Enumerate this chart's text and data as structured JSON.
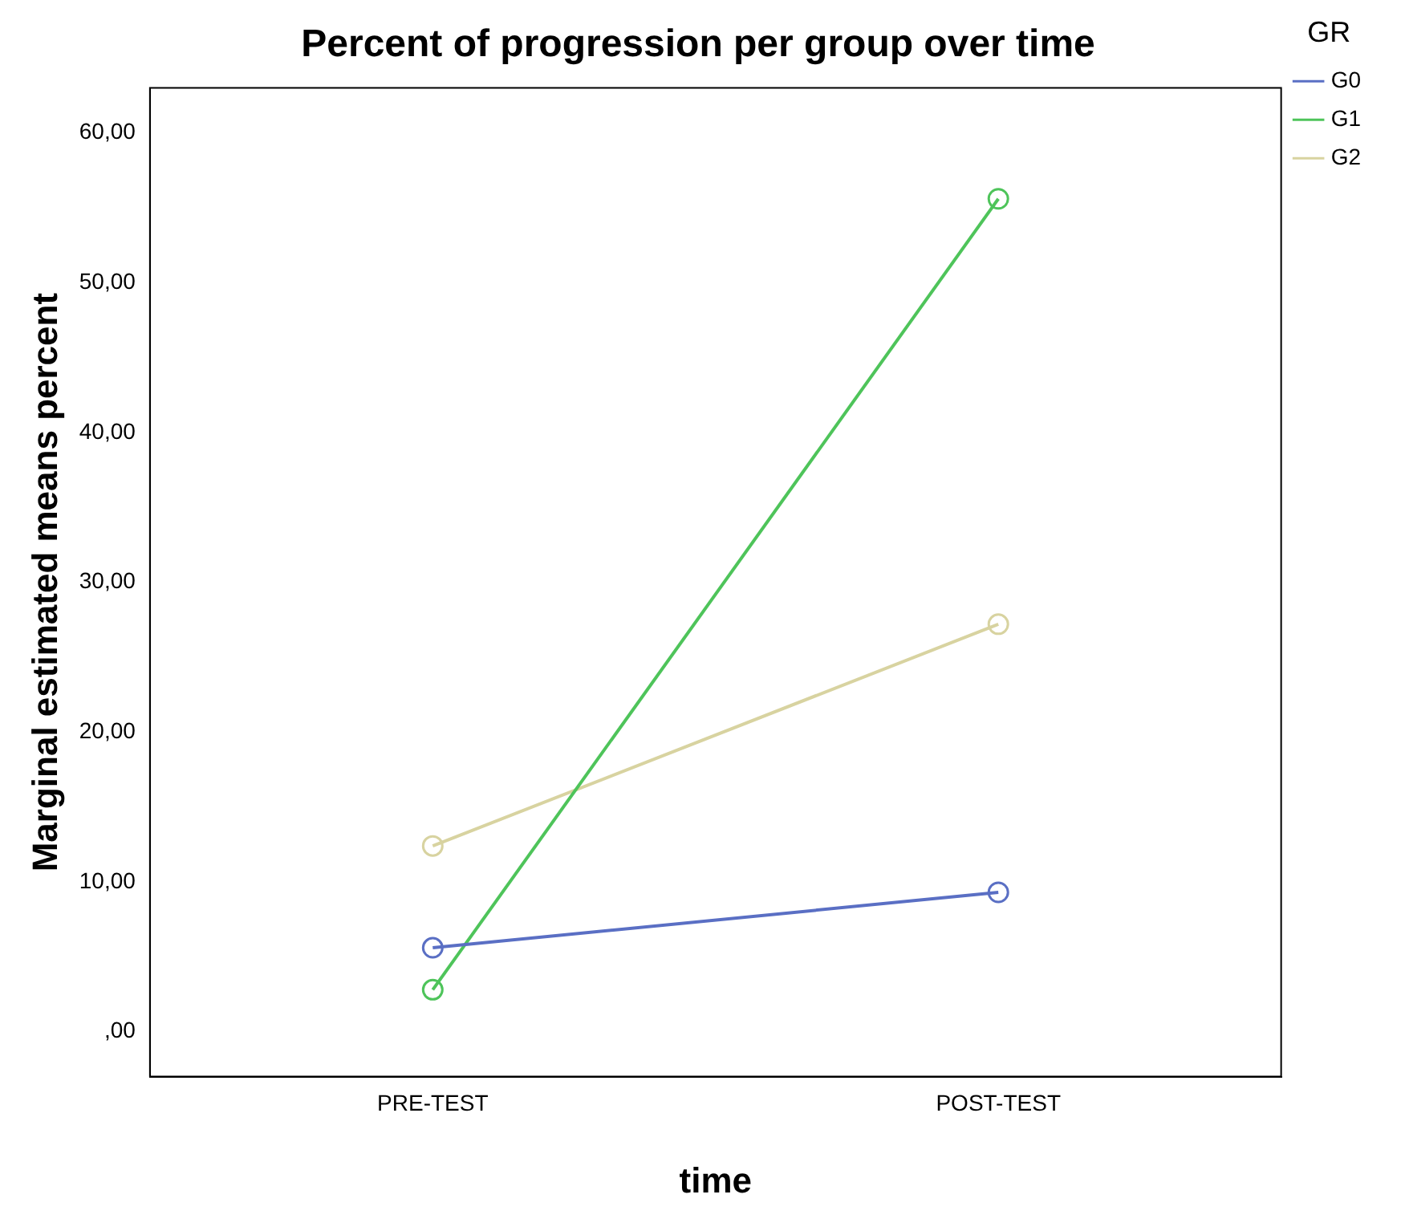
{
  "chart_data": {
    "type": "line",
    "title": "Percent of progression per group over time",
    "xlabel": "time",
    "ylabel": "Marginal estimated means percent",
    "legend_title": "GR",
    "categories": [
      "PRE-TEST",
      "POST-TEST"
    ],
    "series": [
      {
        "name": "G0",
        "color": "#5a6fc4",
        "values": [
          5.6,
          9.3
        ]
      },
      {
        "name": "G1",
        "color": "#4ec45a",
        "values": [
          2.8,
          55.6
        ]
      },
      {
        "name": "G2",
        "color": "#d8d3a0",
        "values": [
          12.4,
          27.2
        ]
      }
    ],
    "ylim": [
      -3,
      63
    ],
    "yticks": [
      {
        "value": 0,
        "label": ",00"
      },
      {
        "value": 10,
        "label": "10,00"
      },
      {
        "value": 20,
        "label": "20,00"
      },
      {
        "value": 30,
        "label": "30,00"
      },
      {
        "value": 40,
        "label": "40,00"
      },
      {
        "value": 50,
        "label": "50,00"
      },
      {
        "value": 60,
        "label": "60,00"
      }
    ],
    "grid": false,
    "legend": "right",
    "marker": "circle",
    "line_style": "solid"
  }
}
